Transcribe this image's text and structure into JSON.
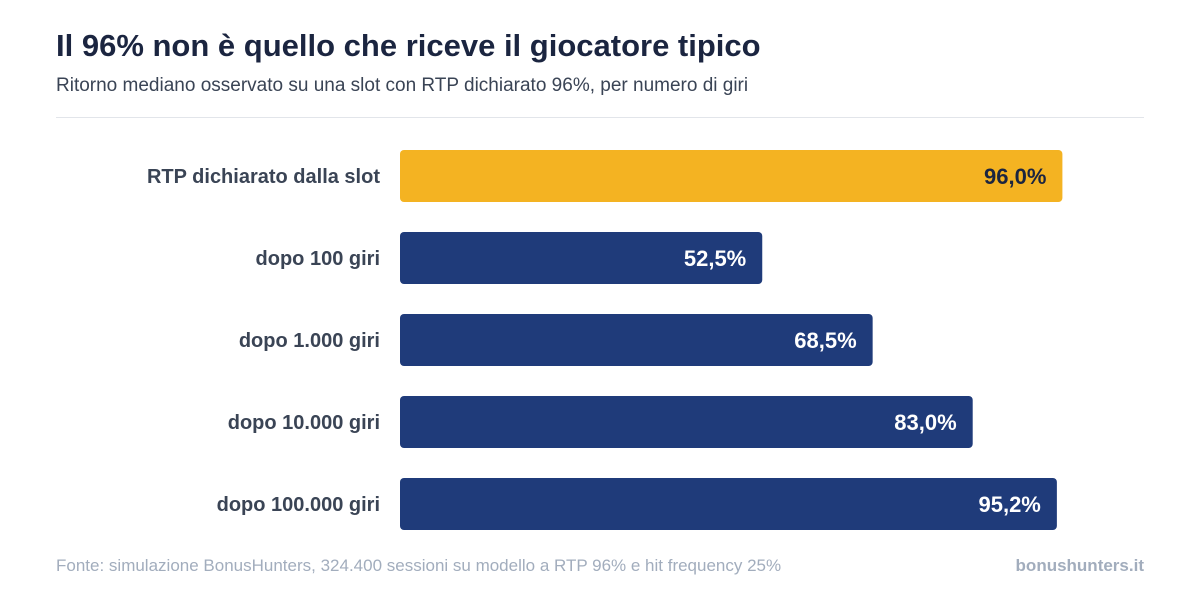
{
  "header": {
    "title": "Il 96% non è quello che riceve il giocatore tipico",
    "subtitle": "Ritorno mediano osservato su una slot con RTP dichiarato 96%, per numero di giri"
  },
  "chart_data": {
    "type": "bar",
    "orientation": "horizontal",
    "categories": [
      "RTP dichiarato dalla slot",
      "dopo 100 giri",
      "dopo 1.000 giri",
      "dopo 10.000 giri",
      "dopo 100.000 giri"
    ],
    "values": [
      96.0,
      52.5,
      68.5,
      83.0,
      95.2
    ],
    "value_labels": [
      "96,0%",
      "52,5%",
      "68,5%",
      "83,0%",
      "95,2%"
    ],
    "xlim": [
      0,
      100
    ],
    "grid": false,
    "colors": {
      "highlight": "#f4b322",
      "default": "#1f3b7a",
      "highlight_label": "#1b2540",
      "default_label": "#ffffff"
    },
    "highlight_index": 0
  },
  "footer": {
    "source": "Fonte: simulazione BonusHunters, 324.400 sessioni su modello a RTP 96% e hit frequency 25%",
    "brand": "bonushunters.it"
  }
}
